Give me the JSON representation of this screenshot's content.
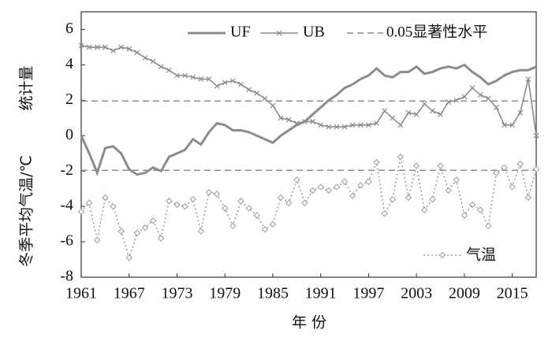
{
  "chart_data": {
    "type": "line",
    "x_label": "年 份",
    "y_label_upper": "统计量",
    "y_label_lower": "冬季平均气温/℃",
    "x": [
      1961,
      1962,
      1963,
      1964,
      1965,
      1966,
      1967,
      1968,
      1969,
      1970,
      1971,
      1972,
      1973,
      1974,
      1975,
      1976,
      1977,
      1978,
      1979,
      1980,
      1981,
      1982,
      1983,
      1984,
      1985,
      1986,
      1987,
      1988,
      1989,
      1990,
      1991,
      1992,
      1993,
      1994,
      1995,
      1996,
      1997,
      1998,
      1999,
      2000,
      2001,
      2002,
      2003,
      2004,
      2005,
      2006,
      2007,
      2008,
      2009,
      2010,
      2011,
      2012,
      2013,
      2014,
      2015,
      2016,
      2017,
      2018
    ],
    "series": [
      {
        "name": "UF",
        "color": "#8c8c8c",
        "style": "solid",
        "marker": "none",
        "values": [
          0,
          -1,
          -2.1,
          -0.7,
          -0.6,
          -1.0,
          -1.9,
          -2.2,
          -2.1,
          -1.8,
          -2.0,
          -1.2,
          -1.0,
          -0.8,
          -0.2,
          -0.5,
          0.2,
          0.7,
          0.6,
          0.3,
          0.3,
          0.2,
          0.0,
          -0.2,
          -0.4,
          0.0,
          0.3,
          0.6,
          0.8,
          1.2,
          1.6,
          2.0,
          2.3,
          2.7,
          2.9,
          3.2,
          3.4,
          3.8,
          3.4,
          3.3,
          3.6,
          3.6,
          3.9,
          3.5,
          3.6,
          3.8,
          3.9,
          3.8,
          4.0,
          3.6,
          3.3,
          2.9,
          3.1,
          3.4,
          3.6,
          3.7,
          3.7,
          3.9
        ]
      },
      {
        "name": "UB",
        "color": "#8c8c8c",
        "style": "solid",
        "marker": "x",
        "values": [
          5.1,
          5.0,
          5.0,
          5.0,
          4.8,
          5.0,
          4.9,
          4.7,
          4.4,
          4.2,
          3.9,
          3.7,
          3.4,
          3.4,
          3.3,
          3.2,
          3.2,
          2.8,
          3.0,
          3.1,
          2.9,
          2.6,
          2.4,
          2.1,
          1.7,
          1.0,
          0.9,
          0.7,
          0.8,
          0.8,
          0.6,
          0.5,
          0.5,
          0.5,
          0.6,
          0.6,
          0.6,
          0.7,
          1.4,
          1.0,
          0.6,
          1.3,
          1.2,
          1.8,
          1.4,
          1.2,
          1.9,
          2.0,
          2.2,
          2.7,
          2.3,
          2.1,
          1.6,
          0.6,
          0.6,
          1.3,
          3.2,
          0.0
        ]
      },
      {
        "name": "气温",
        "color": "#9a9a9a",
        "style": "dotted",
        "marker": "diamond",
        "values": [
          -4.3,
          -3.8,
          -5.9,
          -3.5,
          -4.0,
          -5.4,
          -6.9,
          -5.5,
          -5.2,
          -4.8,
          -5.8,
          -3.7,
          -3.9,
          -4.0,
          -3.6,
          -5.4,
          -3.2,
          -3.3,
          -4.1,
          -5.1,
          -3.7,
          -4.1,
          -4.5,
          -5.3,
          -5.0,
          -3.5,
          -3.8,
          -2.5,
          -3.8,
          -3.1,
          -2.9,
          -3.1,
          -2.9,
          -2.6,
          -3.4,
          -2.8,
          -2.6,
          -1.5,
          -4.4,
          -3.6,
          -1.2,
          -3.5,
          -1.7,
          -4.2,
          -3.6,
          -1.7,
          -3.1,
          -2.5,
          -4.5,
          -3.9,
          -4.2,
          -5.1,
          -2.1,
          -1.8,
          -2.9,
          -1.6,
          -3.5,
          -1.9
        ]
      }
    ],
    "reference_lines": {
      "name": "0.05显著性水平",
      "color": "#8c8c8c",
      "values": [
        1.96,
        -1.96
      ]
    },
    "xlim": [
      1961,
      2018
    ],
    "xticks": [
      1961,
      1967,
      1973,
      1979,
      1985,
      1991,
      1997,
      2003,
      2009,
      2015
    ],
    "ylim": [
      -8,
      7
    ],
    "yticks": [
      -8,
      -6,
      -4,
      -2,
      0,
      2,
      4,
      6
    ]
  }
}
